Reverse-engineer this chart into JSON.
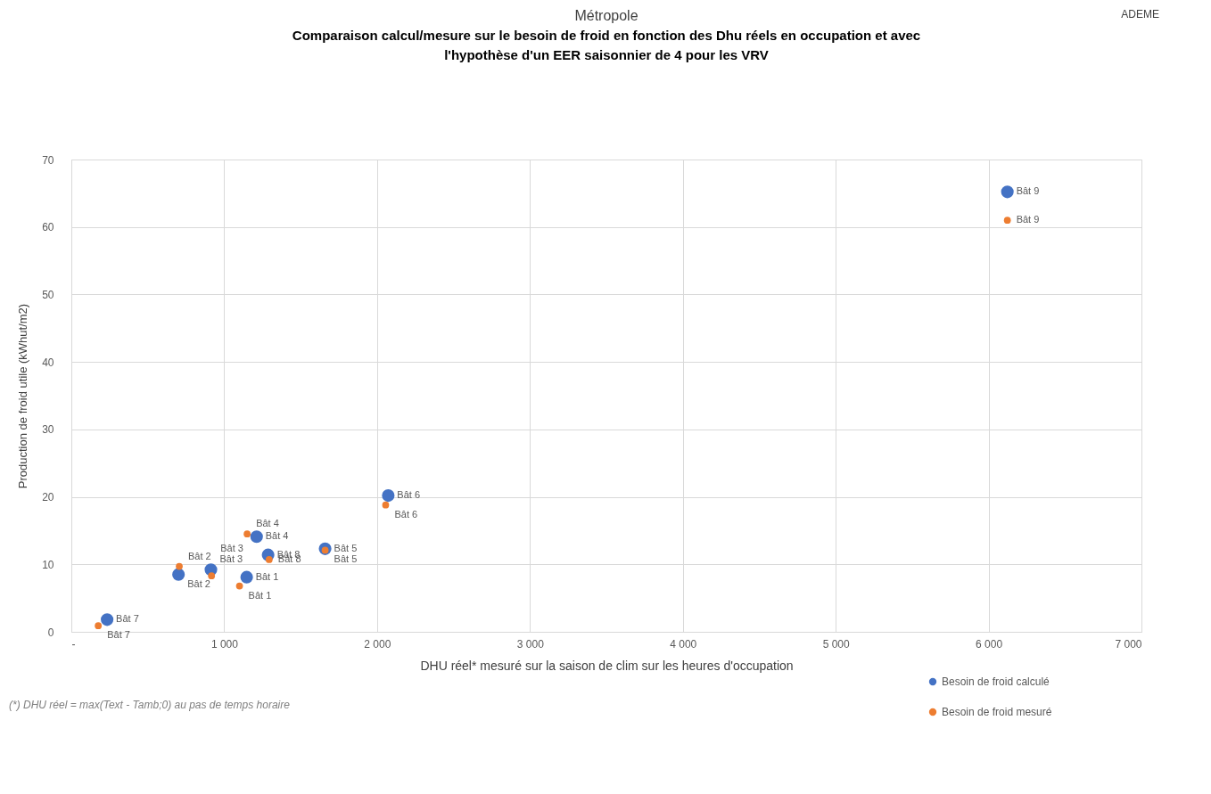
{
  "chart_data": {
    "type": "scatter",
    "title": "Métropole",
    "subtitle": "Comparaison calcul/mesure sur le besoin de froid en fonction des Dhu réels en occupation et avec l'hypothèse d'un EER saisonnier de 4 pour les VRV",
    "xlabel": "DHU réel* mesuré sur la saison de clim sur les heures d'occupation",
    "ylabel": "Production de froid utile (kWhut/m2)",
    "x": [
      1147,
      701,
      913,
      1212,
      1660,
      2073,
      234,
      1287,
      6123
    ],
    "series": [
      {
        "name": "Besoin de froid calculé",
        "color": "#4472c4",
        "values": [
          8.1,
          8.5,
          9.2,
          14.1,
          12.3,
          20.2,
          1.8,
          11.4,
          65.2
        ]
      },
      {
        "name": "Besoin de froid mesuré",
        "color": "#ed7d31",
        "x": [
          1100,
          706,
          917,
          1150,
          1660,
          2056,
          176,
          1294,
          6123
        ],
        "values": [
          6.8,
          9.7,
          8.3,
          14.5,
          12.1,
          18.8,
          0.9,
          10.7,
          61.0
        ]
      }
    ],
    "annotations": [
      {
        "text": "Bât 1",
        "x": 1147,
        "y": 8.1
      },
      {
        "text": "Bât 2",
        "x": 701,
        "y": 8.5
      },
      {
        "text": "Bât 3",
        "x": 913,
        "y": 9.2
      },
      {
        "text": "Bât 4",
        "x": 1212,
        "y": 14.1
      },
      {
        "text": "Bât 5",
        "x": 1660,
        "y": 12.3
      },
      {
        "text": "Bât 6",
        "x": 2073,
        "y": 20.2
      },
      {
        "text": "Bât 7",
        "x": 234,
        "y": 1.8
      },
      {
        "text": "Bât 8",
        "x": 1287,
        "y": 11.4
      },
      {
        "text": "Bât 9",
        "x": 6123,
        "y": 65.2
      },
      {
        "text": "Bât 1",
        "x": 1100,
        "y": 6.8
      },
      {
        "text": "Bât 2",
        "x": 706,
        "y": 9.7
      },
      {
        "text": "Bât 3",
        "x": 917,
        "y": 8.3
      },
      {
        "text": "Bât 4",
        "x": 1150,
        "y": 14.5
      },
      {
        "text": "Bât 5",
        "x": 1660,
        "y": 12.1
      },
      {
        "text": "Bât 6",
        "x": 2056,
        "y": 18.8
      },
      {
        "text": "Bât 7",
        "x": 176,
        "y": 0.9
      },
      {
        "text": "Bât 8",
        "x": 1294,
        "y": 10.7
      },
      {
        "text": "Bât 9",
        "x": 6123,
        "y": 61.0
      },
      "ADEME",
      "(*) DHU réel = max(Text - Tamb;0) au pas de temps horaire"
    ],
    "xlim": [
      0,
      7000
    ],
    "xticks": [
      {
        "value": 0,
        "label": "-"
      },
      {
        "value": 1000,
        "label": "1 000"
      },
      {
        "value": 2000,
        "label": "2 000"
      },
      {
        "value": 3000,
        "label": "3 000"
      },
      {
        "value": 4000,
        "label": "4 000"
      },
      {
        "value": 5000,
        "label": "5 000"
      },
      {
        "value": 6000,
        "label": "6 000"
      },
      {
        "value": 7000,
        "label": "7 000"
      }
    ],
    "ylim": [
      0,
      70
    ],
    "yticks": [
      0,
      10,
      20,
      30,
      40,
      50,
      60,
      70
    ],
    "grid": true,
    "legend": "bottom right",
    "marker": "circle"
  }
}
